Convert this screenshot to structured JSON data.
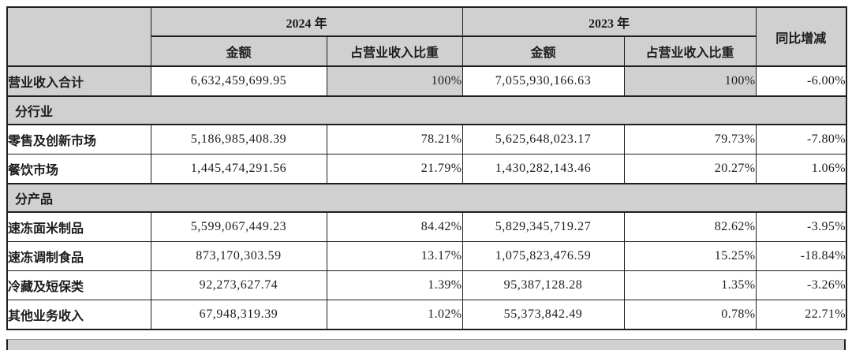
{
  "table": {
    "headers": {
      "corner": "",
      "y2024": "2024 年",
      "y2023": "2023 年",
      "amount_2024": "金额",
      "pct_2024": "占营业收入比重",
      "amount_2023": "金额",
      "pct_2023": "占营业收入比重",
      "yoy": "同比增减"
    },
    "rows": [
      {
        "type": "data",
        "shaded": true,
        "label": "营业收入合计",
        "a2024": "6,632,459,699.95",
        "p2024": "100%",
        "a2023": "7,055,930,166.63",
        "p2023": "100%",
        "yoy": "-6.00%"
      },
      {
        "type": "section",
        "label": "分行业"
      },
      {
        "type": "data",
        "label": "零售及创新市场",
        "a2024": "5,186,985,408.39",
        "p2024": "78.21%",
        "a2023": "5,625,648,023.17",
        "p2023": "79.73%",
        "yoy": "-7.80%"
      },
      {
        "type": "data",
        "label": "餐饮市场",
        "a2024": "1,445,474,291.56",
        "p2024": "21.79%",
        "a2023": "1,430,282,143.46",
        "p2023": "20.27%",
        "yoy": "1.06%"
      },
      {
        "type": "section",
        "label": "分产品"
      },
      {
        "type": "data",
        "label": "速冻面米制品",
        "a2024": "5,599,067,449.23",
        "p2024": "84.42%",
        "a2023": "5,829,345,719.27",
        "p2023": "82.62%",
        "yoy": "-3.95%"
      },
      {
        "type": "data",
        "label": "速冻调制食品",
        "a2024": "873,170,303.59",
        "p2024": "13.17%",
        "a2023": "1,075,823,476.59",
        "p2023": "15.25%",
        "yoy": "-18.84%"
      },
      {
        "type": "data",
        "label": "冷藏及短保类",
        "a2024": "92,273,627.74",
        "p2024": "1.39%",
        "a2023": "95,387,128.28",
        "p2023": "1.35%",
        "yoy": "-3.26%"
      },
      {
        "type": "data",
        "label": "其他业务收入",
        "a2024": "67,948,319.39",
        "p2024": "1.02%",
        "a2023": "55,373,842.49",
        "p2023": "0.78%",
        "yoy": "22.71%"
      }
    ],
    "colors": {
      "header_bg": "#d0d0d0",
      "shaded_cell_bg": "#d0d0d0",
      "border": "#1f1f1f",
      "text": "#1c1c1c"
    },
    "truncated_next_row": true
  }
}
